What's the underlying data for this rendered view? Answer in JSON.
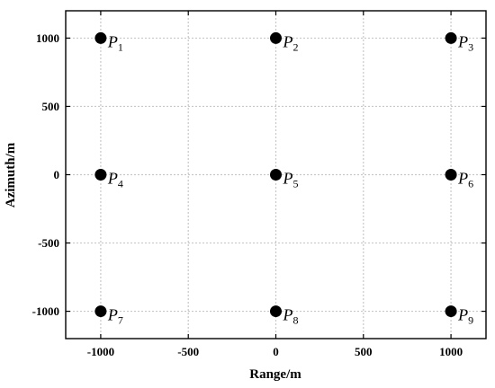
{
  "chart_data": {
    "type": "scatter",
    "title": "",
    "xlabel": "Range/m",
    "ylabel": "Azimuth/m",
    "xlim": [
      -1200,
      1200
    ],
    "ylim": [
      -1200,
      1200
    ],
    "xticks": [
      -1000,
      -500,
      0,
      500,
      1000
    ],
    "yticks": [
      -1000,
      -500,
      0,
      500,
      1000
    ],
    "xtick_labels": [
      "-1000",
      "-500",
      "0",
      "500",
      "1000"
    ],
    "ytick_labels": [
      "-1000",
      "-500",
      "0",
      "500",
      "1000"
    ],
    "grid": true,
    "marker_color": "#000000",
    "points": [
      {
        "label": "P",
        "sub": "1",
        "x": -1000,
        "y": 1000
      },
      {
        "label": "P",
        "sub": "2",
        "x": 0,
        "y": 1000
      },
      {
        "label": "P",
        "sub": "3",
        "x": 1000,
        "y": 1000
      },
      {
        "label": "P",
        "sub": "4",
        "x": -1000,
        "y": 0
      },
      {
        "label": "P",
        "sub": "5",
        "x": 0,
        "y": 0
      },
      {
        "label": "P",
        "sub": "6",
        "x": 1000,
        "y": 0
      },
      {
        "label": "P",
        "sub": "7",
        "x": -1000,
        "y": -1000
      },
      {
        "label": "P",
        "sub": "8",
        "x": 0,
        "y": -1000
      },
      {
        "label": "P",
        "sub": "9",
        "x": 1000,
        "y": -1000
      }
    ]
  }
}
